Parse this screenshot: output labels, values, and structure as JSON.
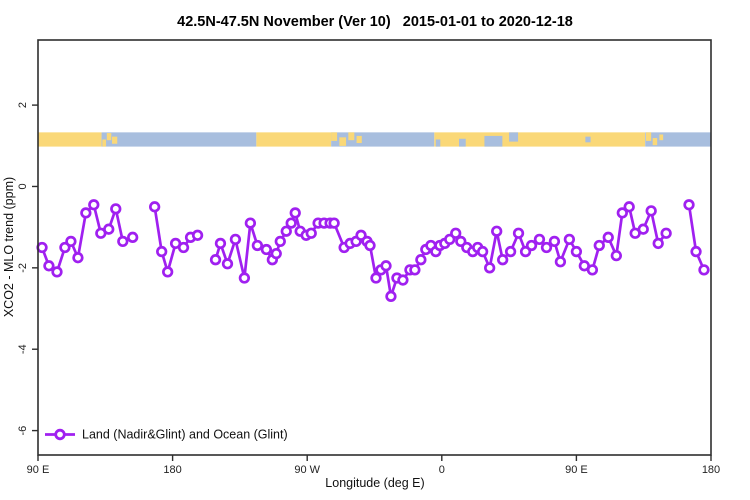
{
  "header": {
    "title": "42.5N-47.5N November (Ver 10)   2015-01-01 to 2020-12-18"
  },
  "chart_data": {
    "type": "line",
    "title": "42.5N-47.5N November (Ver 10)   2015-01-01 to 2020-12-18",
    "xlabel": "Longitude (deg E)",
    "ylabel": "XCO2 - MLO trend (ppm)",
    "xlim": [
      90,
      540
    ],
    "ylim": [
      -6.6,
      3.6
    ],
    "grid": false,
    "x_ticks": [
      {
        "value": 90,
        "label": "90 E"
      },
      {
        "value": 180,
        "label": "180"
      },
      {
        "value": 270,
        "label": "90 W"
      },
      {
        "value": 360,
        "label": "0"
      },
      {
        "value": 450,
        "label": "90 E"
      },
      {
        "value": 540,
        "label": "180"
      }
    ],
    "y_ticks": [
      {
        "value": 2,
        "label": "2"
      },
      {
        "value": 0,
        "label": "0"
      },
      {
        "value": -2,
        "label": "-2"
      },
      {
        "value": -4,
        "label": "-4"
      },
      {
        "value": -6,
        "label": "-6"
      }
    ],
    "colors": {
      "series": "#A020F0",
      "land": "#FAD878",
      "ocean": "#A8BEDE",
      "axis": "#2e2e2e"
    },
    "legend": {
      "position": "bottom-left",
      "entries": [
        {
          "label": "Land (Nadir&Glint) and Ocean (Glint)",
          "color": "#A020F0",
          "marker": "open-circle"
        }
      ]
    },
    "map_strip": {
      "description": "land/ocean world map band at 42.5N-47.5N",
      "y_top": 1.33,
      "y_bottom": 0.98,
      "base_segments": [
        {
          "from": 90,
          "to": 132.5,
          "type": "land"
        },
        {
          "from": 132.5,
          "to": 236,
          "type": "ocean"
        },
        {
          "from": 236,
          "to": 286,
          "type": "land"
        },
        {
          "from": 286,
          "to": 355,
          "type": "ocean"
        },
        {
          "from": 355,
          "to": 496,
          "type": "land"
        },
        {
          "from": 496,
          "to": 540,
          "type": "ocean"
        }
      ],
      "patches": [
        {
          "from": 133,
          "to": 135.5,
          "top": 0.5,
          "bottom": 1,
          "type": "land"
        },
        {
          "from": 136,
          "to": 139,
          "top": 0.05,
          "bottom": 0.55,
          "type": "land"
        },
        {
          "from": 139.5,
          "to": 143,
          "top": 0.3,
          "bottom": 0.8,
          "type": "land"
        },
        {
          "from": 286,
          "to": 290,
          "top": 0,
          "bottom": 0.6,
          "type": "land"
        },
        {
          "from": 291.5,
          "to": 296,
          "top": 0.35,
          "bottom": 0.95,
          "type": "land"
        },
        {
          "from": 297.5,
          "to": 301.5,
          "top": 0,
          "bottom": 0.55,
          "type": "land"
        },
        {
          "from": 303,
          "to": 306.5,
          "top": 0.25,
          "bottom": 0.75,
          "type": "land"
        },
        {
          "from": 356,
          "to": 359,
          "top": 0.5,
          "bottom": 1,
          "type": "ocean"
        },
        {
          "from": 371.5,
          "to": 376,
          "top": 0.45,
          "bottom": 1,
          "type": "ocean"
        },
        {
          "from": 388.5,
          "to": 400.5,
          "top": 0.25,
          "bottom": 1,
          "type": "ocean"
        },
        {
          "from": 405,
          "to": 411,
          "top": 0,
          "bottom": 0.65,
          "type": "ocean"
        },
        {
          "from": 456,
          "to": 459.5,
          "top": 0.3,
          "bottom": 0.7,
          "type": "ocean"
        },
        {
          "from": 496.5,
          "to": 500,
          "top": 0,
          "bottom": 0.6,
          "type": "land"
        },
        {
          "from": 501,
          "to": 504,
          "top": 0.4,
          "bottom": 0.9,
          "type": "land"
        },
        {
          "from": 505.5,
          "to": 508,
          "top": 0.15,
          "bottom": 0.55,
          "type": "land"
        }
      ]
    },
    "series": [
      {
        "name": "Land (Nadir&Glint) and Ocean (Glint)",
        "segments": [
          [
            [
              92.7,
              -1.5
            ],
            [
              97.3,
              -1.95
            ],
            [
              102.7,
              -2.1
            ],
            [
              108,
              -1.5
            ],
            [
              112,
              -1.35
            ],
            [
              116.7,
              -1.75
            ],
            [
              122,
              -0.65
            ],
            [
              127.3,
              -0.45
            ],
            [
              132,
              -1.15
            ],
            [
              137.3,
              -1.05
            ],
            [
              142,
              -0.55
            ],
            [
              146.7,
              -1.35
            ],
            [
              153.3,
              -1.25
            ]
          ],
          [
            [
              168,
              -0.5
            ],
            [
              172.7,
              -1.6
            ],
            [
              176.7,
              -2.1
            ],
            [
              182,
              -1.4
            ],
            [
              187.3,
              -1.5
            ],
            [
              192,
              -1.25
            ],
            [
              196.7,
              -1.2
            ]
          ],
          [
            [
              208.7,
              -1.8
            ],
            [
              212,
              -1.4
            ],
            [
              216.7,
              -1.9
            ],
            [
              222,
              -1.3
            ],
            [
              228,
              -2.25
            ],
            [
              232,
              -0.9
            ],
            [
              236.7,
              -1.45
            ],
            [
              242.7,
              -1.55
            ],
            [
              246.7,
              -1.8
            ],
            [
              249.3,
              -1.65
            ],
            [
              252,
              -1.35
            ],
            [
              256,
              -1.1
            ],
            [
              259.3,
              -0.9
            ],
            [
              262,
              -0.65
            ],
            [
              265.3,
              -1.1
            ],
            [
              269.3,
              -1.2
            ],
            [
              272.7,
              -1.15
            ],
            [
              277.3,
              -0.9
            ],
            [
              281.3,
              -0.9
            ],
            [
              285.3,
              -0.9
            ],
            [
              288,
              -0.9
            ],
            [
              294.7,
              -1.5
            ],
            [
              298.7,
              -1.4
            ],
            [
              302.7,
              -1.35
            ],
            [
              306,
              -1.2
            ],
            [
              310,
              -1.35
            ],
            [
              312,
              -1.45
            ],
            [
              316,
              -2.25
            ],
            [
              319.3,
              -2.05
            ],
            [
              322.7,
              -1.95
            ],
            [
              326,
              -2.7
            ],
            [
              330,
              -2.25
            ],
            [
              334,
              -2.3
            ],
            [
              338.7,
              -2.05
            ],
            [
              342,
              -2.05
            ],
            [
              346,
              -1.8
            ],
            [
              349.3,
              -1.55
            ],
            [
              352.7,
              -1.45
            ],
            [
              356,
              -1.6
            ],
            [
              358.7,
              -1.45
            ],
            [
              362,
              -1.4
            ],
            [
              365.3,
              -1.3
            ],
            [
              369.3,
              -1.15
            ],
            [
              372.7,
              -1.35
            ],
            [
              376.7,
              -1.5
            ],
            [
              380.7,
              -1.6
            ],
            [
              384,
              -1.5
            ],
            [
              387.3,
              -1.6
            ],
            [
              392,
              -2.0
            ],
            [
              396.7,
              -1.1
            ],
            [
              400.7,
              -1.8
            ],
            [
              406,
              -1.6
            ],
            [
              411.3,
              -1.15
            ],
            [
              416,
              -1.6
            ],
            [
              420,
              -1.45
            ],
            [
              425.3,
              -1.3
            ],
            [
              430,
              -1.5
            ],
            [
              435.3,
              -1.35
            ],
            [
              439.3,
              -1.85
            ],
            [
              445.3,
              -1.3
            ],
            [
              450,
              -1.6
            ],
            [
              455.3,
              -1.95
            ],
            [
              460.7,
              -2.05
            ],
            [
              465.3,
              -1.45
            ],
            [
              471.3,
              -1.25
            ],
            [
              476.7,
              -1.7
            ],
            [
              480.7,
              -0.65
            ],
            [
              485.3,
              -0.5
            ],
            [
              489.3,
              -1.15
            ],
            [
              494.7,
              -1.05
            ],
            [
              500,
              -0.6
            ],
            [
              504.7,
              -1.4
            ],
            [
              510,
              -1.15
            ]
          ],
          [
            [
              525.3,
              -0.45
            ],
            [
              530,
              -1.6
            ],
            [
              535.3,
              -2.05
            ]
          ]
        ]
      }
    ]
  }
}
